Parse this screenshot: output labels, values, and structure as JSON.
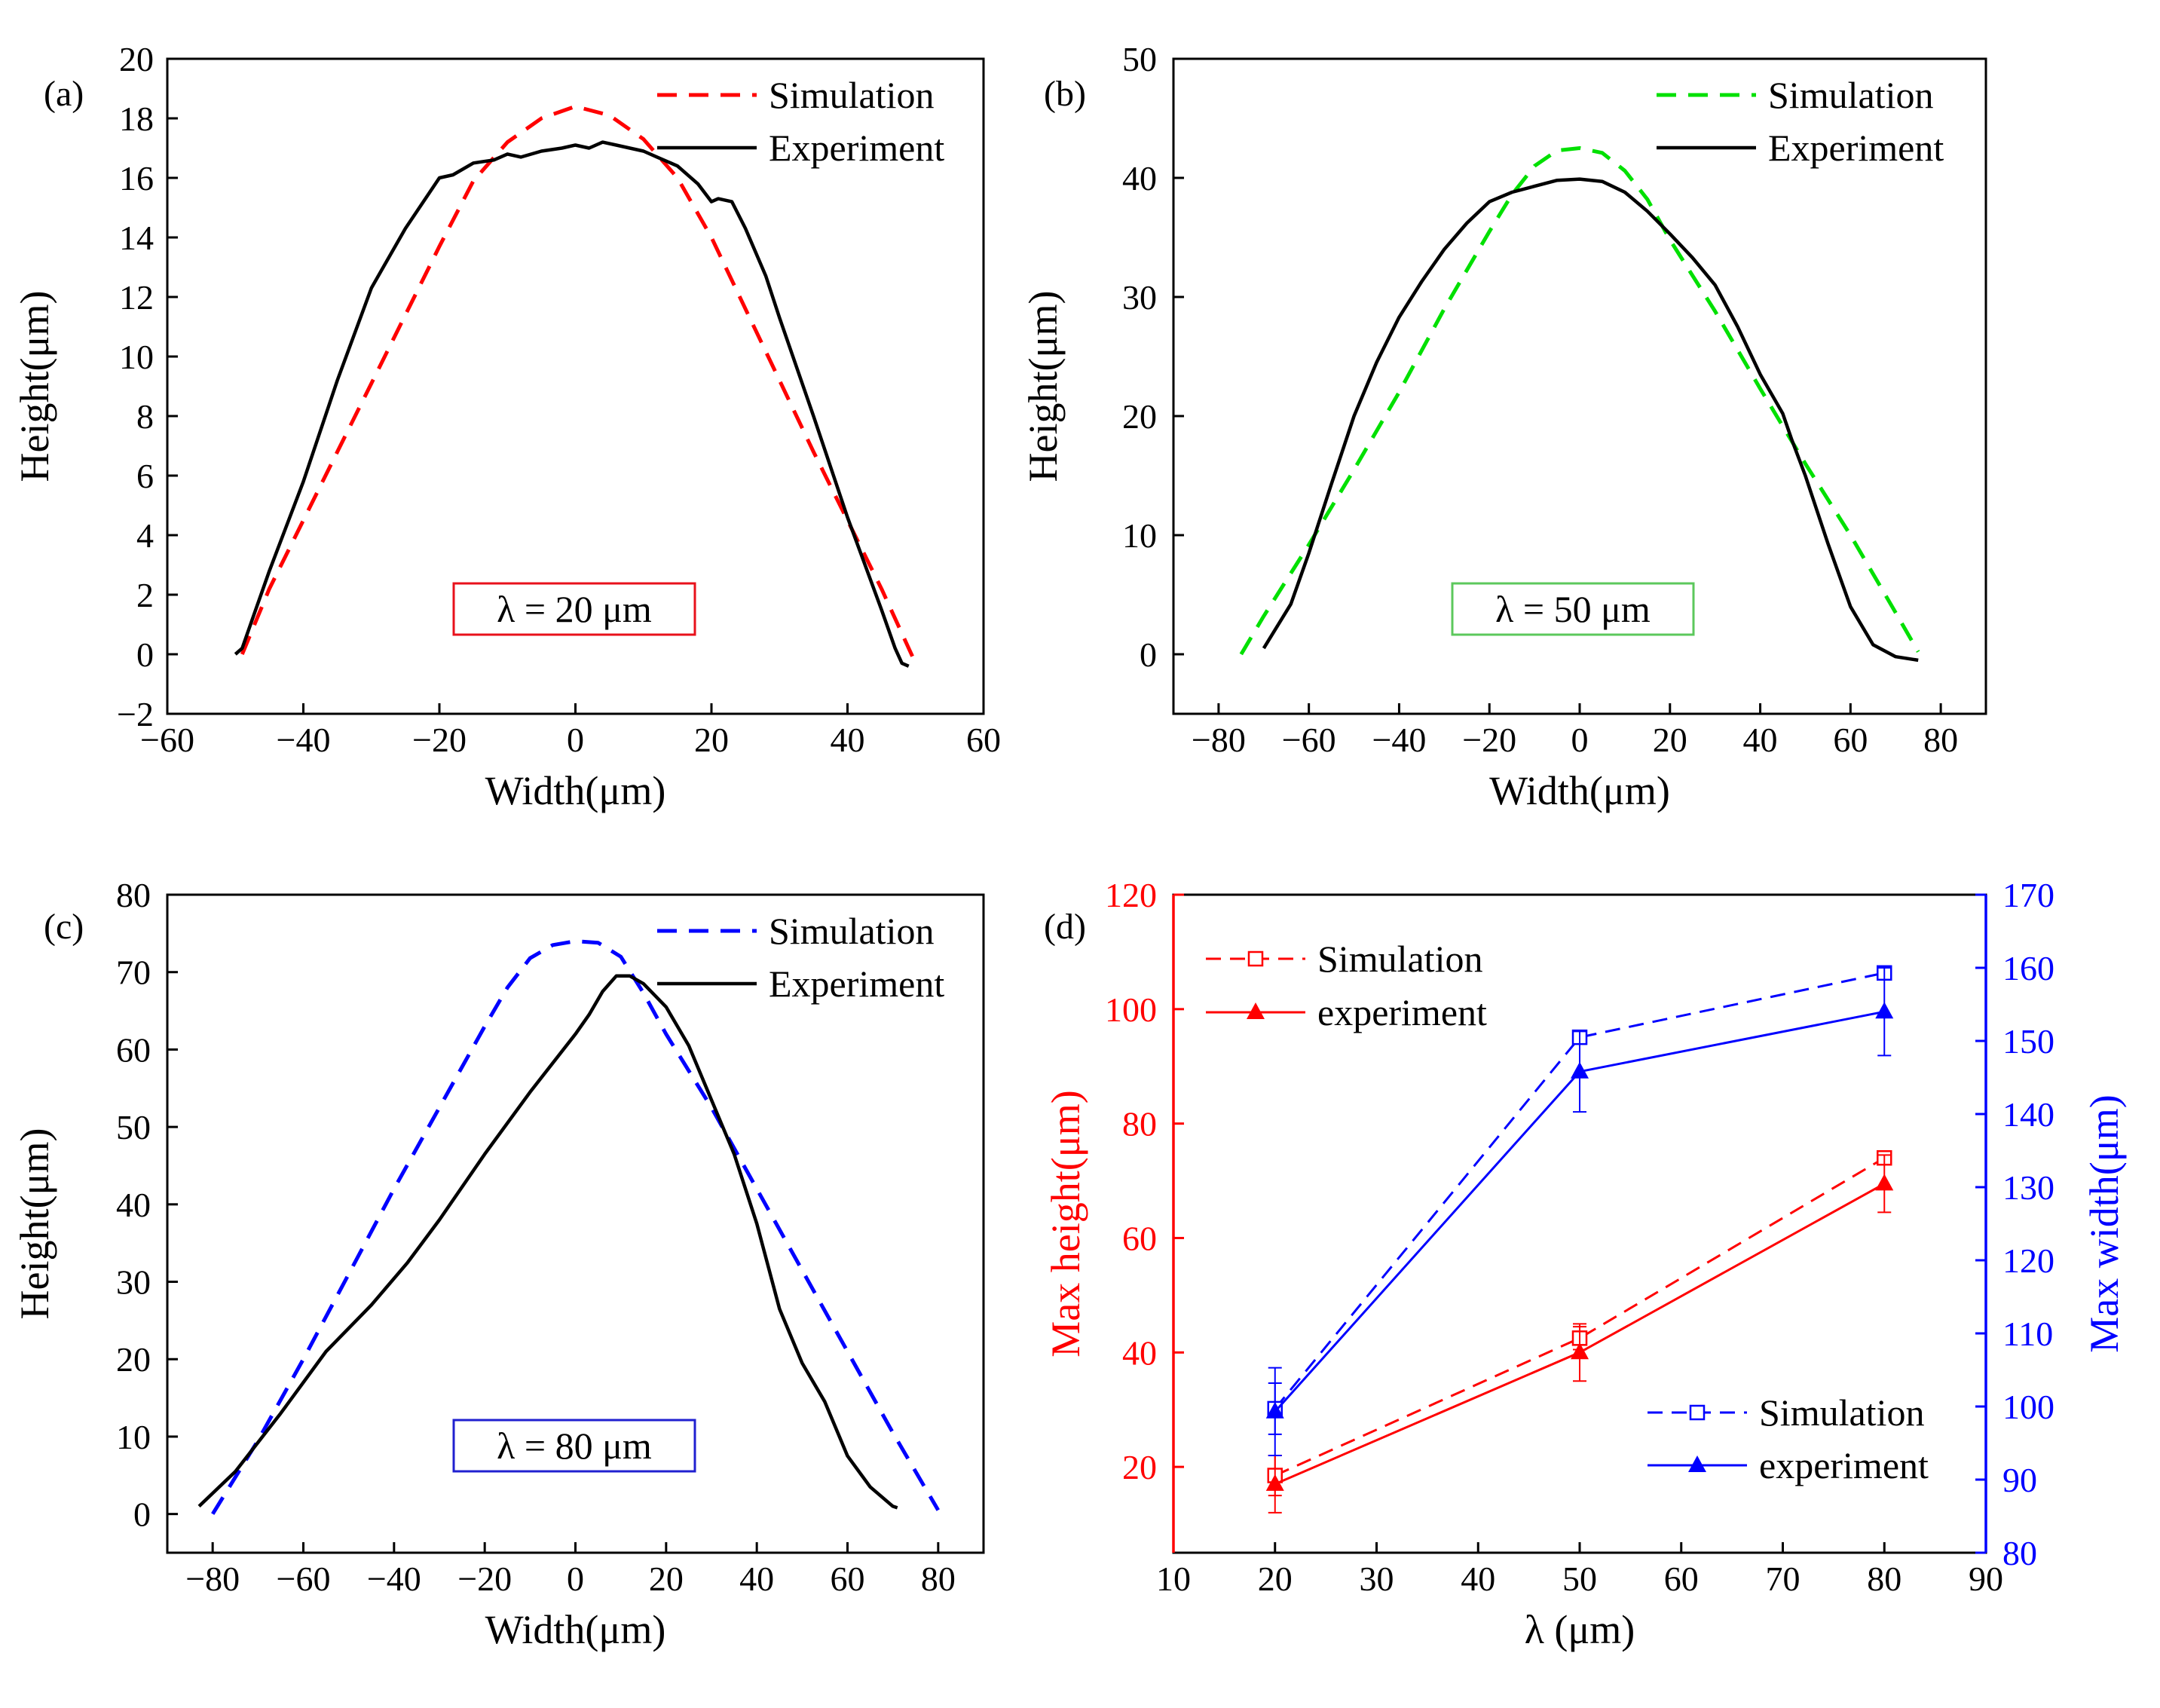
{
  "figure": {
    "panels": [
      "(a)",
      "(b)",
      "(c)",
      "(d)"
    ]
  },
  "chart_data": [
    {
      "id": "a",
      "panel_label": "(a)",
      "type": "line",
      "xlabel": "Width(μm)",
      "ylabel": "Height(μm)",
      "xlim": [
        -60,
        60
      ],
      "ylim": [
        -2,
        20
      ],
      "xticks": [
        -60,
        -40,
        -20,
        0,
        20,
        40,
        60
      ],
      "yticks": [
        -2,
        0,
        2,
        4,
        6,
        8,
        10,
        12,
        14,
        16,
        18,
        20
      ],
      "legend": "top-right",
      "annotation": {
        "text": "λ = 20 μm",
        "color": "#e8111b"
      },
      "series": [
        {
          "name": "Simulation",
          "style": "dashed",
          "color": "#ff0000",
          "x": [
            -49,
            -45,
            -40,
            -35,
            -30,
            -25,
            -20,
            -15,
            -10,
            -5,
            0,
            5,
            10,
            15,
            20,
            25,
            30,
            35,
            40,
            45,
            50
          ],
          "y": [
            0,
            2.2,
            4.5,
            6.8,
            9.1,
            11.4,
            13.7,
            15.9,
            17.2,
            18.0,
            18.4,
            18.1,
            17.3,
            16.0,
            14.0,
            11.6,
            9.2,
            6.8,
            4.5,
            2.2,
            -0.3
          ]
        },
        {
          "name": "Experiment",
          "style": "solid",
          "color": "#000000",
          "x": [
            -50,
            -49,
            -47,
            -45,
            -40,
            -35,
            -30,
            -25,
            -20,
            -18,
            -15,
            -12,
            -10,
            -8,
            -5,
            -2,
            0,
            2,
            4,
            6,
            8,
            10,
            12,
            15,
            18,
            20,
            21,
            23,
            25,
            28,
            30,
            35,
            40,
            45,
            47,
            48,
            49
          ],
          "y": [
            0,
            0.2,
            1.5,
            2.8,
            5.8,
            9.2,
            12.3,
            14.3,
            16.0,
            16.1,
            16.5,
            16.6,
            16.8,
            16.7,
            16.9,
            17.0,
            17.1,
            17.0,
            17.2,
            17.1,
            17.0,
            16.9,
            16.7,
            16.4,
            15.8,
            15.2,
            15.3,
            15.2,
            14.3,
            12.7,
            11.3,
            8.0,
            4.6,
            1.5,
            0.2,
            -0.3,
            -0.4
          ]
        }
      ]
    },
    {
      "id": "b",
      "panel_label": "(b)",
      "type": "line",
      "xlabel": "Width(μm)",
      "ylabel": "Height(μm)",
      "xlim": [
        -90,
        90
      ],
      "ylim": [
        -5,
        50
      ],
      "xticks": [
        -80,
        -60,
        -40,
        -20,
        0,
        20,
        40,
        60,
        80
      ],
      "yticks": [
        0,
        10,
        20,
        30,
        40,
        50
      ],
      "legend": "top-right",
      "annotation": {
        "text": "λ = 50 μm",
        "color": "#5cc85c"
      },
      "series": [
        {
          "name": "Simulation",
          "style": "dashed",
          "color": "#00e000",
          "x": [
            -75,
            -70,
            -60,
            -50,
            -40,
            -30,
            -20,
            -15,
            -10,
            -5,
            0,
            5,
            10,
            15,
            20,
            30,
            40,
            50,
            60,
            70,
            75
          ],
          "y": [
            0,
            3.2,
            9.2,
            15.5,
            22,
            29,
            35.5,
            38.6,
            41.0,
            42.3,
            42.5,
            42.1,
            40.6,
            38.2,
            34.8,
            28.8,
            22.3,
            16.0,
            10.0,
            3.5,
            0.2
          ]
        },
        {
          "name": "Experiment",
          "style": "solid",
          "color": "#000000",
          "x": [
            -70,
            -64,
            -60,
            -55,
            -50,
            -45,
            -40,
            -35,
            -30,
            -25,
            -20,
            -15,
            -10,
            -5,
            0,
            5,
            10,
            15,
            20,
            25,
            30,
            35,
            40,
            45,
            47,
            50,
            55,
            60,
            65,
            70,
            75
          ],
          "y": [
            0.5,
            4.2,
            8.5,
            14.3,
            20,
            24.5,
            28.3,
            31.3,
            34.0,
            36.2,
            38.0,
            38.8,
            39.3,
            39.8,
            39.9,
            39.7,
            38.8,
            37.2,
            35.3,
            33.3,
            31.0,
            27.5,
            23.5,
            20.2,
            18.0,
            15.0,
            9.3,
            4.0,
            0.8,
            -0.2,
            -0.5
          ]
        }
      ]
    },
    {
      "id": "c",
      "panel_label": "(c)",
      "type": "line",
      "xlabel": "Width(μm)",
      "ylabel": "Height(μm)",
      "xlim": [
        -90,
        90
      ],
      "ylim": [
        -5,
        80
      ],
      "xticks": [
        -80,
        -60,
        -40,
        -20,
        0,
        20,
        40,
        60,
        80
      ],
      "yticks": [
        0,
        10,
        20,
        30,
        40,
        50,
        60,
        70,
        80
      ],
      "legend": "top-right",
      "annotation": {
        "text": "λ = 80 μm",
        "color": "#2020d0"
      },
      "series": [
        {
          "name": "Simulation",
          "style": "dashed",
          "color": "#0000ff",
          "x": [
            -80,
            -70,
            -60,
            -50,
            -40,
            -30,
            -20,
            -15,
            -10,
            -5,
            0,
            5,
            10,
            15,
            20,
            30,
            40,
            50,
            60,
            70,
            80
          ],
          "y": [
            0,
            9.5,
            20,
            31,
            42,
            52.5,
            63.0,
            68.0,
            71.8,
            73.5,
            74.0,
            73.8,
            72.0,
            67.3,
            62.0,
            52.5,
            42.0,
            31.5,
            21.0,
            10.5,
            0.5
          ]
        },
        {
          "name": "Experiment",
          "style": "solid",
          "color": "#000000",
          "x": [
            -83,
            -75,
            -65,
            -55,
            -45,
            -37,
            -30,
            -20,
            -10,
            0,
            3,
            6,
            9,
            12,
            15,
            20,
            25,
            30,
            35,
            40,
            45,
            50,
            55,
            60,
            65,
            70,
            71
          ],
          "y": [
            1,
            5.5,
            13,
            21,
            27,
            32.5,
            38,
            46.5,
            54.5,
            62,
            64.5,
            67.5,
            69.5,
            69.5,
            68.5,
            65.5,
            60.5,
            53.5,
            46.5,
            37.5,
            26.5,
            19.5,
            14.5,
            7.5,
            3.5,
            1.0,
            0.8
          ]
        }
      ]
    },
    {
      "id": "d",
      "panel_label": "(d)",
      "type": "line",
      "xlabel": "λ (μm)",
      "ylabel": "Max height(μm)",
      "ylabel_right": "Max width(μm)",
      "ylabel_color": "#ff0000",
      "ylabel_right_color": "#0000ff",
      "xlim": [
        10,
        90
      ],
      "ylim": [
        5,
        120
      ],
      "ylim_right": [
        80,
        170
      ],
      "xticks": [
        10,
        20,
        30,
        40,
        50,
        60,
        70,
        80,
        90
      ],
      "yticks": [
        20,
        40,
        60,
        80,
        100,
        120
      ],
      "yticks_right": [
        80,
        90,
        100,
        110,
        120,
        130,
        140,
        150,
        160,
        170
      ],
      "legends": [
        "top-left (red series)",
        "bottom-right (blue series)"
      ],
      "series": [
        {
          "name": "Simulation",
          "axis": "left",
          "style": "dashed",
          "marker": "open-square",
          "color": "#ff0000",
          "x": [
            20,
            50,
            80
          ],
          "y": [
            18.5,
            42.5,
            74.0
          ],
          "yerr": [
            3.5,
            2.0,
            0.0
          ]
        },
        {
          "name": "experiment",
          "axis": "left",
          "style": "solid",
          "marker": "filled-triangle",
          "color": "#ff0000",
          "x": [
            20,
            50,
            80
          ],
          "y": [
            17.0,
            40.0,
            69.5
          ],
          "yerr": [
            5.0,
            5.0,
            5.0
          ]
        },
        {
          "name": "Simulation",
          "axis": "right",
          "style": "dashed",
          "marker": "open-square",
          "color": "#0000ff",
          "x": [
            20,
            50,
            80
          ],
          "y": [
            99.7,
            150.5,
            159.3
          ],
          "yerr": [
            3.5,
            0.0,
            0.0
          ]
        },
        {
          "name": "experiment",
          "axis": "right",
          "style": "solid",
          "marker": "filled-triangle",
          "color": "#0000ff",
          "x": [
            20,
            50,
            80
          ],
          "y": [
            99.3,
            145.8,
            154.0
          ],
          "yerr": [
            6.0,
            5.5,
            6.0
          ]
        }
      ]
    }
  ]
}
